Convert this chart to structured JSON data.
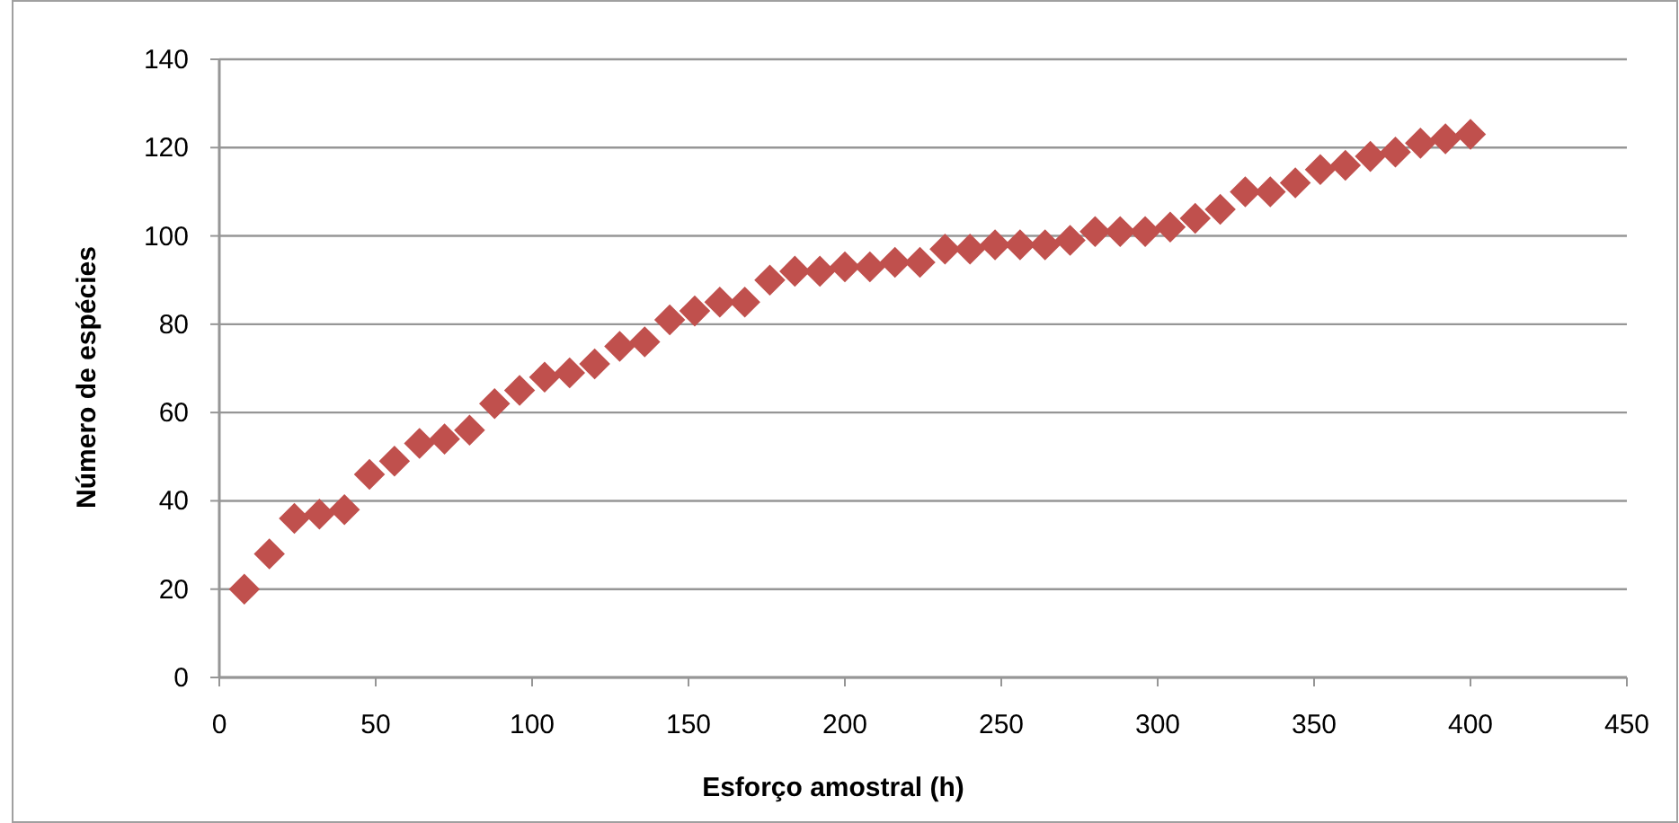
{
  "chart_data": {
    "type": "scatter",
    "xlabel": "Esforço amostral (h)",
    "ylabel": "Número de espécies",
    "x": [
      8,
      16,
      24,
      32,
      40,
      48,
      56,
      64,
      72,
      80,
      88,
      96,
      104,
      112,
      120,
      128,
      136,
      144,
      152,
      160,
      168,
      176,
      184,
      192,
      200,
      208,
      216,
      224,
      232,
      240,
      248,
      256,
      264,
      272,
      280,
      288,
      296,
      304,
      312,
      320,
      328,
      336,
      344,
      352,
      360,
      368,
      376,
      384,
      392,
      400
    ],
    "series": [
      {
        "color": "#c0504d",
        "values": [
          20,
          28,
          36,
          37,
          38,
          46,
          49,
          53,
          54,
          56,
          62,
          65,
          68,
          69,
          71,
          75,
          76,
          81,
          83,
          85,
          85,
          90,
          92,
          92,
          93,
          93,
          94,
          94,
          97,
          97,
          98,
          98,
          98,
          99,
          101,
          101,
          101,
          102,
          104,
          106,
          110,
          110,
          112,
          115,
          116,
          118,
          119,
          121,
          122,
          123
        ]
      }
    ],
    "xlim": [
      0,
      450
    ],
    "xticks": [
      0,
      50,
      100,
      150,
      200,
      250,
      300,
      350,
      400,
      450
    ],
    "ylim": [
      0,
      140
    ],
    "yticks": [
      0,
      20,
      40,
      60,
      80,
      100,
      120,
      140
    ],
    "grid": "y",
    "marker": "diamond"
  }
}
